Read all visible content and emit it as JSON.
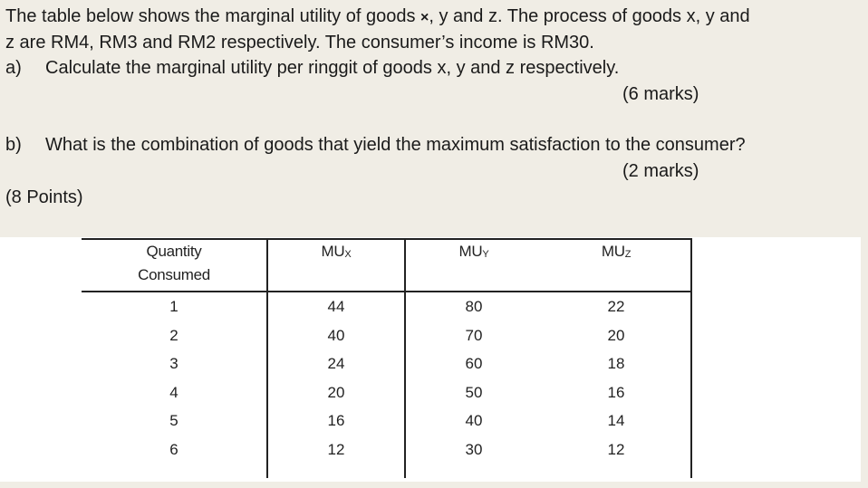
{
  "question": {
    "intro_line1_pre": "The table below shows the marginal utility of goods ",
    "intro_line1_x": "×",
    "intro_line1_post": ", y and z. The process of goods x, y and",
    "intro_line2": "z are RM4, RM3 and RM2 respectively. The consumer’s income is RM30.",
    "part_a": {
      "label": "a)",
      "text": "Calculate the marginal utility per ringgit of goods x, y and z respectively.",
      "marks": "(6 marks)"
    },
    "part_b": {
      "label": "b)",
      "text": "What is the combination of goods that yield the maximum satisfaction to the consumer?",
      "marks": "(2 marks)"
    },
    "total_points": "(8 Points)"
  },
  "table": {
    "headers": [
      {
        "line1": "Quantity",
        "line2": "Consumed"
      },
      {
        "main": "MU",
        "sub": "X"
      },
      {
        "main": "MU",
        "sub": "Y"
      },
      {
        "main": "MU",
        "sub": "Z"
      }
    ],
    "rows": [
      [
        "1",
        "44",
        "80",
        "22"
      ],
      [
        "2",
        "40",
        "70",
        "20"
      ],
      [
        "3",
        "24",
        "60",
        "18"
      ],
      [
        "4",
        "20",
        "50",
        "16"
      ],
      [
        "5",
        "16",
        "40",
        "14"
      ],
      [
        "6",
        "12",
        "30",
        "12"
      ]
    ]
  }
}
